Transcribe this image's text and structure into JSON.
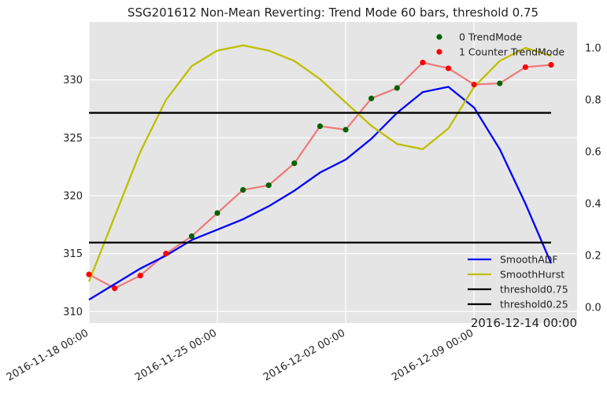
{
  "chart_data": {
    "type": "line",
    "title": "SSG201612 Non-Mean Reverting: Trend Mode 60 bars, threshold 0.75",
    "corner_label": "2016-12-14 00:00",
    "x_ticks": [
      "2016-11-18 00:00",
      "2016-11-25 00:00",
      "2016-12-02 00:00",
      "2016-12-09 00:00"
    ],
    "x_tick_index": [
      0,
      5,
      10,
      15
    ],
    "y_left": {
      "lim": [
        309,
        335
      ],
      "ticks": [
        310,
        315,
        320,
        325,
        330
      ]
    },
    "y_right": {
      "lim": [
        -0.06,
        1.1
      ],
      "ticks": [
        "0.0",
        "0.2",
        "0.4",
        "0.6",
        "0.8",
        "1.0"
      ]
    },
    "grid": true,
    "price": {
      "color": "#f07878",
      "values": [
        313.2,
        312.0,
        313.1,
        315.0,
        316.5,
        318.5,
        320.5,
        320.9,
        322.8,
        326.0,
        325.7,
        328.4,
        329.3,
        331.5,
        331.0,
        329.6,
        329.7,
        331.1,
        331.3
      ],
      "mode": [
        1,
        1,
        1,
        1,
        0,
        0,
        0,
        0,
        0,
        0,
        0,
        0,
        0,
        1,
        1,
        1,
        0,
        1,
        1
      ]
    },
    "scatter_legend": [
      {
        "label": "0 TrendMode",
        "color": "#006400"
      },
      {
        "label": "1 Counter TrendMode",
        "color": "#ff0000"
      }
    ],
    "series_right": [
      {
        "name": "SmoothADF",
        "color": "#0000ff",
        "values": [
          0.03,
          0.09,
          0.15,
          0.2,
          0.26,
          0.3,
          0.34,
          0.39,
          0.45,
          0.52,
          0.57,
          0.65,
          0.75,
          0.83,
          0.85,
          0.77,
          0.61,
          0.4,
          0.17
        ]
      },
      {
        "name": "SmoothHurst",
        "color": "#bfbf00",
        "values": [
          0.1,
          0.35,
          0.6,
          0.8,
          0.93,
          0.99,
          1.01,
          0.99,
          0.95,
          0.88,
          0.79,
          0.7,
          0.63,
          0.61,
          0.69,
          0.85,
          0.95,
          1.0,
          0.97
        ]
      },
      {
        "name": "threshold0.75",
        "color": "#000000",
        "values": [
          0.75,
          0.75
        ]
      },
      {
        "name": "threshold0.25",
        "color": "#000000",
        "values": [
          0.25,
          0.25
        ]
      }
    ]
  }
}
